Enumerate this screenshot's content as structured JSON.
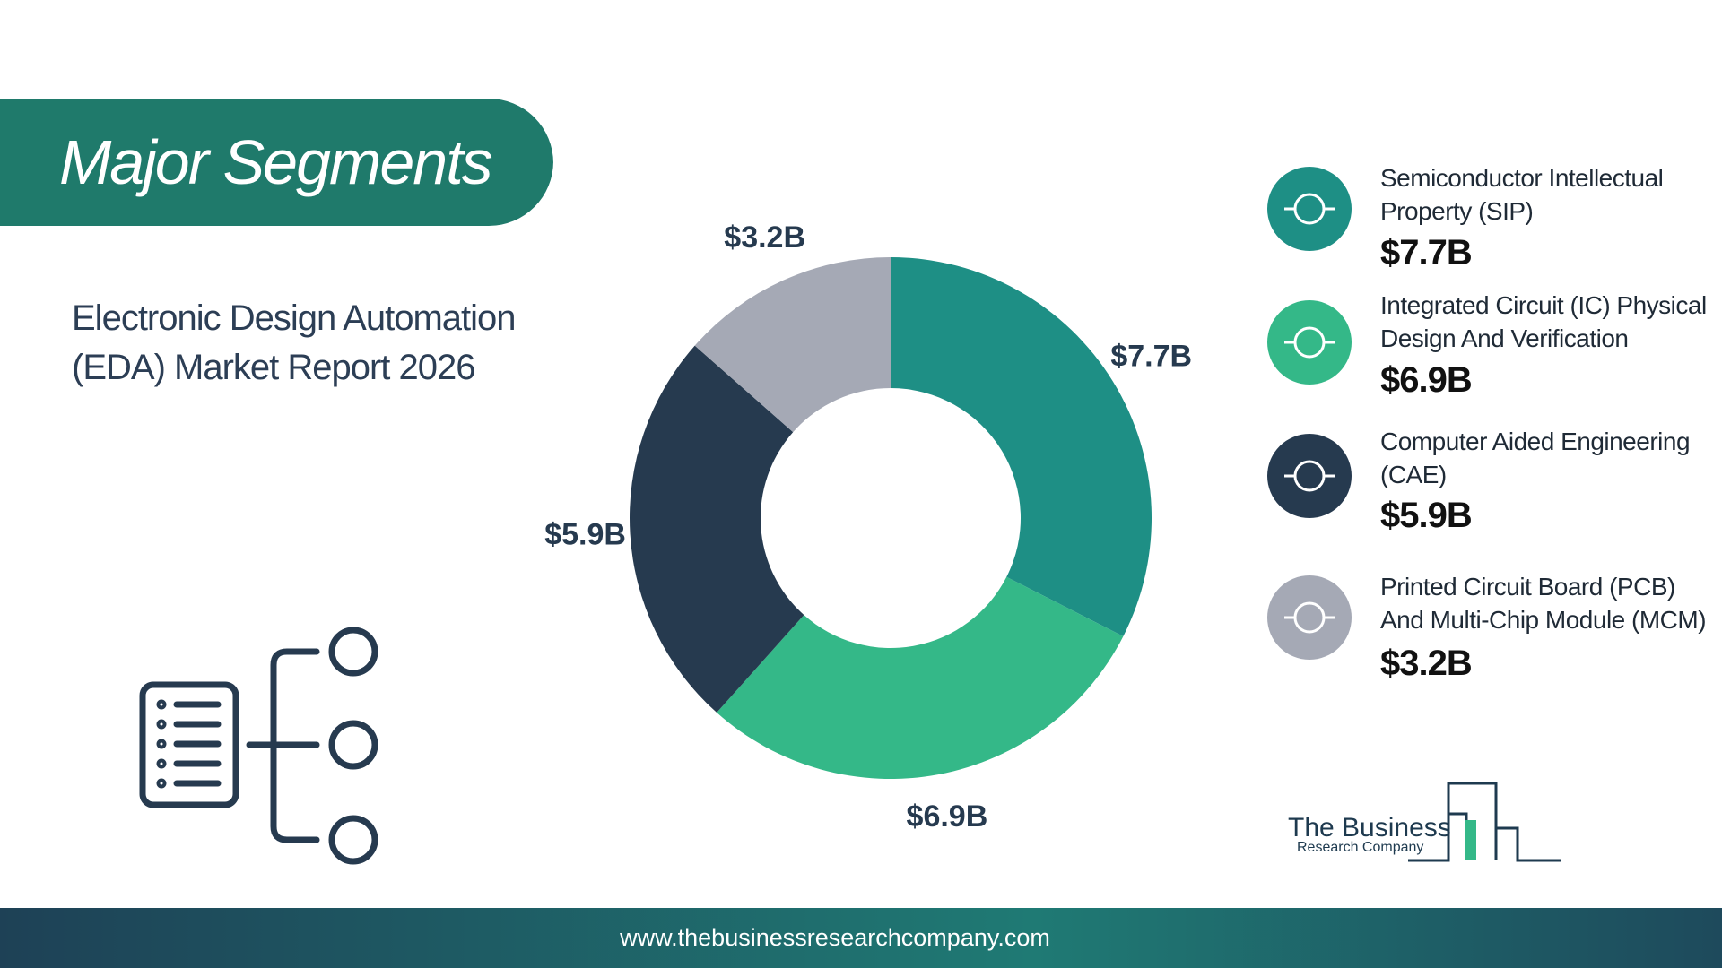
{
  "chart_data": {
    "type": "donut",
    "title": "Major Segments",
    "subtitle": "Electronic Design Automation (EDA) Market Report 2026",
    "categories": [
      "Semiconductor Intellectual Property (SIP)",
      "Integrated Circuit (IC) Physical Design And Verification",
      "Computer Aided Engineering (CAE)",
      "Printed Circuit Board (PCB) And Multi-Chip Module (MCM)"
    ],
    "values": [
      7.7,
      6.9,
      5.9,
      3.2
    ],
    "value_labels": [
      "$7.7B",
      "$6.9B",
      "$5.9B",
      "$3.2B"
    ],
    "colors": [
      "#1e8f85",
      "#34b888",
      "#263a4f",
      "#a5a9b5"
    ]
  },
  "logo": {
    "line1": "The Business",
    "line2": "Research Company"
  },
  "footer": {
    "url": "www.thebusinessresearchcompany.com"
  }
}
